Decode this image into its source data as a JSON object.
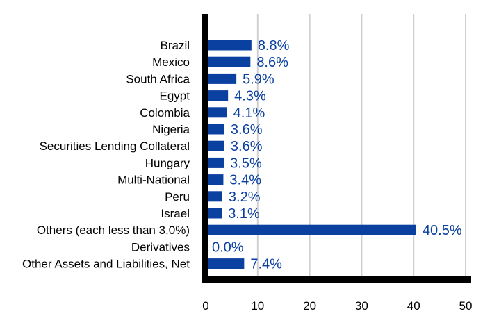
{
  "chart_data": {
    "type": "bar",
    "orientation": "horizontal",
    "categories": [
      "Brazil",
      "Mexico",
      "South Africa",
      "Egypt",
      "Colombia",
      "Nigeria",
      "Securities Lending Collateral",
      "Hungary",
      "Multi-National",
      "Peru",
      "Israel",
      "Others (each less than 3.0%)",
      "Derivatives",
      "Other Assets and Liabilities, Net"
    ],
    "values": [
      8.8,
      8.6,
      5.9,
      4.3,
      4.1,
      3.6,
      3.6,
      3.5,
      3.4,
      3.2,
      3.1,
      40.5,
      0.0,
      7.4
    ],
    "data_labels": [
      "8.8%",
      "8.6%",
      "5.9%",
      "4.3%",
      "4.1%",
      "3.6%",
      "3.6%",
      "3.5%",
      "3.4%",
      "3.2%",
      "3.1%",
      "40.5%",
      "0.0%",
      "7.4%"
    ],
    "xlim": [
      0,
      50
    ],
    "x_ticks": [
      0,
      10,
      20,
      30,
      40,
      50
    ],
    "x_tick_labels": [
      "0",
      "10",
      "20",
      "30",
      "40",
      "50"
    ],
    "grid": "vertical",
    "bar_color": "#0a40a0",
    "label_color": "#0a40a0",
    "grid_color": "#d0d0d0",
    "axis_color": "#000000"
  }
}
